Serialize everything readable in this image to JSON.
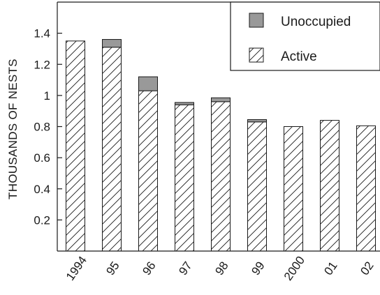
{
  "chart_data": {
    "type": "bar",
    "stacked": true,
    "title": "",
    "xlabel": "",
    "ylabel": "THOUSANDS OF NESTS",
    "categories": [
      "1994",
      "95",
      "96",
      "97",
      "98",
      "99",
      "2000",
      "01",
      "02"
    ],
    "series": [
      {
        "name": "Active",
        "pattern": "diagonal-hatch",
        "color": "#ffffff",
        "values": [
          1.35,
          1.31,
          1.03,
          0.94,
          0.96,
          0.83,
          0.8,
          0.84,
          0.805
        ]
      },
      {
        "name": "Unoccupied",
        "pattern": "solid",
        "color": "#999999",
        "values": [
          0.0,
          0.05,
          0.09,
          0.015,
          0.025,
          0.015,
          0.0,
          0.0,
          0.0
        ]
      }
    ],
    "ylim": [
      0,
      1.6
    ],
    "yticks": [
      "0.2",
      "0.4",
      "0.6",
      "0.8",
      "1",
      "1.2",
      "1.4"
    ],
    "legend_position": "top-right",
    "legend_order": [
      "Unoccupied",
      "Active"
    ],
    "grid": false
  }
}
